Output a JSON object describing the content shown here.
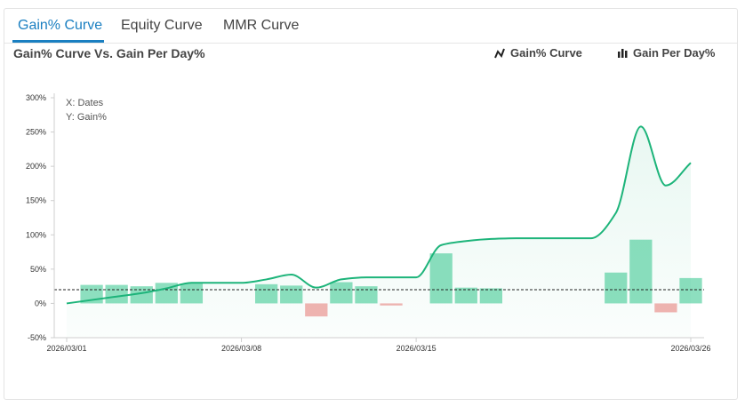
{
  "tabs": [
    {
      "label": "Gain% Curve",
      "active": true
    },
    {
      "label": "Equity Curve",
      "active": false
    },
    {
      "label": "MMR Curve",
      "active": false
    }
  ],
  "colors": {
    "accent": "#1a7fc1",
    "curve": "#1db47a",
    "positive_bar": "#8ddfbf",
    "negative_bar": "#f4b3b1"
  },
  "legend": {
    "curve": {
      "label": "Gain% Curve",
      "icon": "line-chart-icon"
    },
    "bars": {
      "label": "Gain Per Day%",
      "icon": "bar-chart-icon"
    }
  },
  "chart_data": {
    "type": "line",
    "title": "Gain% Curve Vs. Gain Per Day%",
    "xlabel": "X: Dates",
    "ylabel": "Y: Gain%",
    "ylim": [
      -50,
      300
    ],
    "yticks": [
      -50,
      0,
      50,
      100,
      150,
      200,
      250,
      300
    ],
    "ytick_labels": [
      "-50%",
      "0%",
      "50%",
      "100%",
      "150%",
      "200%",
      "250%",
      "300%"
    ],
    "xlim": [
      "2026-03-01",
      "2026-03-26"
    ],
    "xtick_labels": [
      "2026/03/01",
      "2026/03/08",
      "2026/03/15",
      "2026/03/26"
    ],
    "xtick_dates": [
      "2026-03-01",
      "2026-03-08",
      "2026-03-15",
      "2026-03-26"
    ],
    "reference_line_y": 20,
    "grid": false,
    "legend_position": "top-right",
    "series": [
      {
        "name": "Gain% Curve",
        "type": "line",
        "x": [
          "2026-03-01",
          "2026-03-02",
          "2026-03-03",
          "2026-03-04",
          "2026-03-05",
          "2026-03-06",
          "2026-03-07",
          "2026-03-08",
          "2026-03-09",
          "2026-03-10",
          "2026-03-11",
          "2026-03-12",
          "2026-03-13",
          "2026-03-14",
          "2026-03-15",
          "2026-03-16",
          "2026-03-17",
          "2026-03-18",
          "2026-03-19",
          "2026-03-20",
          "2026-03-21",
          "2026-03-22",
          "2026-03-23",
          "2026-03-24",
          "2026-03-25",
          "2026-03-26"
        ],
        "y": [
          0,
          5,
          10,
          15,
          22,
          30,
          30,
          30,
          35,
          42,
          23,
          35,
          38,
          38,
          38,
          85,
          91,
          94,
          95,
          95,
          95,
          95,
          132,
          258,
          172,
          205
        ]
      },
      {
        "name": "Gain Per Day%",
        "type": "bar",
        "x": [
          "2026-03-02",
          "2026-03-03",
          "2026-03-04",
          "2026-03-05",
          "2026-03-06",
          "2026-03-09",
          "2026-03-10",
          "2026-03-11",
          "2026-03-12",
          "2026-03-13",
          "2026-03-14",
          "2026-03-16",
          "2026-03-17",
          "2026-03-18",
          "2026-03-23",
          "2026-03-24",
          "2026-03-25",
          "2026-03-26"
        ],
        "y": [
          27,
          27,
          25,
          30,
          29,
          28,
          26,
          -19,
          31,
          25,
          -3,
          73,
          23,
          22,
          45,
          93,
          -13,
          37
        ]
      }
    ]
  }
}
